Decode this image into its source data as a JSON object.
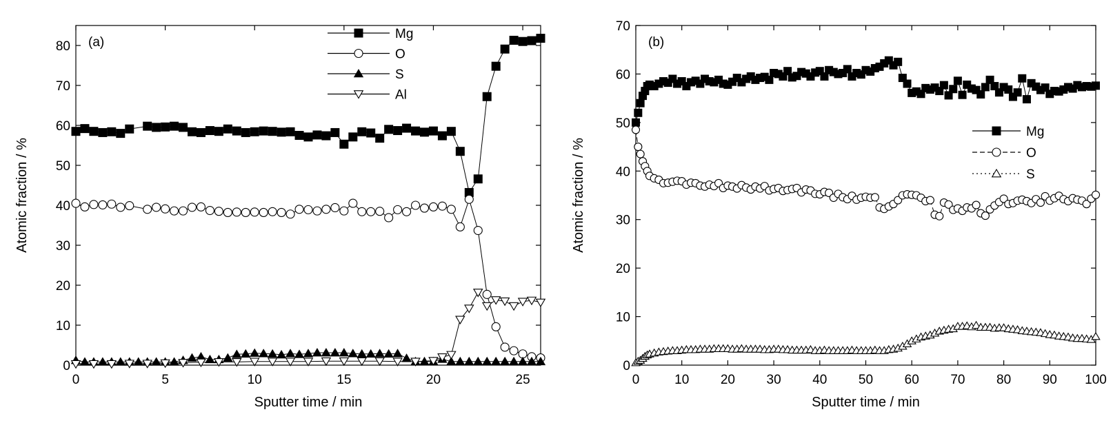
{
  "chart_data": [
    {
      "type": "scatter",
      "panel_label": "(a)",
      "xlabel": "Sputter time / min",
      "ylabel": "Atomic fraction / %",
      "xlim": [
        0,
        26
      ],
      "ylim": [
        0,
        85
      ],
      "xticks": [
        "0",
        "5",
        "10",
        "15",
        "20",
        "25"
      ],
      "yticks": [
        "0",
        "10",
        "20",
        "30",
        "40",
        "50",
        "60",
        "70",
        "80"
      ],
      "legend_position": "top-right",
      "series": [
        {
          "name": "Mg",
          "marker": "filled-square",
          "line": "solid",
          "x": [
            0,
            0.5,
            1,
            1.5,
            2,
            2.5,
            3,
            4,
            4.5,
            5,
            5.5,
            6,
            6.5,
            7,
            7.5,
            8,
            8.5,
            9,
            9.5,
            10,
            10.5,
            11,
            11.5,
            12,
            12.5,
            13,
            13.5,
            14,
            14.5,
            15,
            15.5,
            16,
            16.5,
            17,
            17.5,
            18,
            18.5,
            19,
            19.5,
            20,
            20.5,
            21,
            21.5,
            22,
            22.5,
            23,
            23.5,
            24,
            24.5,
            25,
            25.5,
            26
          ],
          "y": [
            58.5,
            59.2,
            58.5,
            58.2,
            58.4,
            58,
            59.1,
            59.8,
            59.5,
            59.6,
            59.8,
            59.5,
            58.4,
            58.2,
            58.7,
            58.5,
            59.1,
            58.6,
            58.2,
            58.4,
            58.6,
            58.5,
            58.3,
            58.4,
            57.5,
            57.1,
            57.6,
            57.4,
            58.2,
            55.3,
            57.1,
            58.4,
            58.1,
            56.8,
            59,
            58.7,
            59.3,
            58.6,
            58.3,
            58.6,
            57.4,
            58.5,
            53.5,
            43.2,
            46.6,
            67.2,
            74.8,
            79.1,
            81.3,
            81,
            81.2,
            81.8
          ]
        },
        {
          "name": "O",
          "marker": "open-circle",
          "line": "solid",
          "x": [
            0,
            0.5,
            1,
            1.5,
            2,
            2.5,
            3,
            4,
            4.5,
            5,
            5.5,
            6,
            6.5,
            7,
            7.5,
            8,
            8.5,
            9,
            9.5,
            10,
            10.5,
            11,
            11.5,
            12,
            12.5,
            13,
            13.5,
            14,
            14.5,
            15,
            15.5,
            16,
            16.5,
            17,
            17.5,
            18,
            18.5,
            19,
            19.5,
            20,
            20.5,
            21,
            21.5,
            22,
            22.5,
            23,
            23.5,
            24,
            24.5,
            25,
            25.5,
            26
          ],
          "y": [
            40.5,
            39.6,
            40.2,
            40.1,
            40.3,
            39.5,
            39.9,
            39,
            39.5,
            39.1,
            38.6,
            38.6,
            39.5,
            39.6,
            38.7,
            38.5,
            38.2,
            38.3,
            38.2,
            38.3,
            38.2,
            38.4,
            38.2,
            37.8,
            39,
            38.9,
            38.6,
            39,
            39.4,
            38.6,
            40.5,
            38.4,
            38.4,
            38.5,
            36.9,
            38.9,
            38.4,
            40,
            39.3,
            39.6,
            39.8,
            39,
            34.6,
            41.5,
            33.7,
            17.7,
            9.6,
            4.5,
            3.6,
            2.8,
            2.1,
            1.8
          ]
        },
        {
          "name": "S",
          "marker": "filled-triangle-up",
          "line": "solid",
          "x": [
            0,
            0.5,
            1,
            1.5,
            2,
            2.5,
            3,
            3.5,
            4,
            4.5,
            5,
            5.5,
            6,
            6.5,
            7,
            7.5,
            8,
            8.5,
            9,
            9.5,
            10,
            10.5,
            11,
            11.5,
            12,
            12.5,
            13,
            13.5,
            14,
            14.5,
            15,
            15.5,
            16,
            16.5,
            17,
            17.5,
            18,
            18.5,
            19,
            19.5,
            20,
            20.5,
            21,
            21.5,
            22,
            22.5,
            23,
            23.5,
            24,
            24.5,
            25,
            25.5,
            26
          ],
          "y": [
            1.2,
            0.8,
            0.8,
            0.8,
            0.8,
            0.8,
            0.8,
            0.8,
            0.8,
            0.8,
            0.8,
            0.8,
            1.2,
            1.8,
            2.1,
            1.4,
            1.4,
            1.8,
            2.7,
            2.8,
            3,
            2.9,
            2.8,
            2.6,
            2.9,
            2.7,
            2.9,
            3.1,
            3.1,
            3.1,
            3.1,
            2.9,
            2.8,
            2.8,
            2.9,
            2.8,
            2.9,
            1.7,
            0.9,
            0.9,
            0.9,
            1.5,
            0.9,
            0.9,
            0.9,
            0.9,
            0.9,
            0.9,
            0.9,
            0.9,
            0.9,
            0.9,
            0.9
          ]
        },
        {
          "name": "Al",
          "marker": "open-triangle-down",
          "line": "solid",
          "x": [
            0,
            1,
            2,
            3,
            4,
            5,
            6,
            7,
            8,
            9,
            10,
            11,
            12,
            13,
            14,
            15,
            16,
            17,
            18,
            19,
            20,
            20.5,
            21,
            21.5,
            22,
            22.5,
            23,
            23.5,
            24,
            24.5,
            25,
            25.5,
            26
          ],
          "y": [
            0.3,
            0.3,
            0.3,
            0.4,
            0.4,
            0.5,
            0.6,
            0.7,
            0.8,
            0.8,
            0.9,
            0.9,
            0.9,
            0.9,
            1,
            1,
            1,
            1,
            0.9,
            0.9,
            1.1,
            2,
            2.6,
            11.4,
            14.2,
            18.2,
            14.8,
            16.3,
            16,
            14.8,
            15.9,
            16.2,
            15.7
          ]
        }
      ]
    },
    {
      "type": "scatter",
      "panel_label": "(b)",
      "xlabel": "Sputter time / min",
      "ylabel": "Atomic fraction / %",
      "xlim": [
        0,
        100
      ],
      "ylim": [
        0,
        70
      ],
      "xticks": [
        "0",
        "10",
        "20",
        "30",
        "40",
        "50",
        "60",
        "70",
        "80",
        "90",
        "100"
      ],
      "yticks": [
        "0",
        "10",
        "20",
        "30",
        "40",
        "50",
        "60",
        "70"
      ],
      "legend_position": "right",
      "series": [
        {
          "name": "Mg",
          "marker": "filled-square",
          "line": "solid",
          "x": [
            0,
            0.5,
            1,
            1.5,
            2,
            2.5,
            3,
            4,
            5,
            6,
            7,
            8,
            9,
            10,
            11,
            12,
            13,
            14,
            15,
            16,
            17,
            18,
            19,
            20,
            21,
            22,
            23,
            24,
            25,
            26,
            27,
            28,
            29,
            30,
            31,
            32,
            33,
            34,
            35,
            36,
            37,
            38,
            39,
            40,
            41,
            42,
            43,
            44,
            45,
            46,
            47,
            48,
            49,
            50,
            51,
            52,
            53,
            54,
            55,
            56,
            57,
            58,
            59,
            60,
            61,
            62,
            63,
            64,
            65,
            66,
            67,
            68,
            69,
            70,
            71,
            72,
            73,
            74,
            75,
            76,
            77,
            78,
            79,
            80,
            81,
            82,
            83,
            84,
            85,
            86,
            87,
            88,
            89,
            90,
            91,
            92,
            93,
            94,
            95,
            96,
            97,
            98,
            99,
            100
          ],
          "y": [
            50,
            52,
            54,
            55.5,
            56.5,
            57.5,
            57.8,
            57.5,
            58,
            58.5,
            58.2,
            59,
            58,
            58.5,
            57.5,
            58.3,
            58.6,
            58,
            59,
            58.5,
            58.3,
            58.8,
            58,
            57.8,
            58.4,
            59.2,
            58.3,
            59,
            59.5,
            58.8,
            59.2,
            59.4,
            58.8,
            60.2,
            60,
            59.5,
            60.6,
            59.3,
            59.6,
            60.4,
            60.1,
            59.5,
            60.3,
            60.6,
            59.5,
            60.8,
            60.4,
            60,
            60.2,
            61,
            59.5,
            60.2,
            59.9,
            60.8,
            60.5,
            61.2,
            61.5,
            62.2,
            62.8,
            61.8,
            62.5,
            59.2,
            58,
            56.1,
            56.4,
            55.9,
            57.1,
            56.8,
            57.2,
            56.5,
            57.7,
            55.6,
            56.9,
            58.6,
            55.7,
            57.8,
            57,
            56.7,
            55.8,
            57.3,
            58.8,
            57.5,
            56.2,
            57.3,
            56.8,
            55.3,
            56.2,
            59.1,
            54.8,
            58.1,
            57.4,
            56.7,
            57.2,
            55.9,
            56.5,
            56.4,
            56.8,
            57.3,
            57,
            57.7,
            57.3,
            57.5,
            57.4,
            57.6
          ]
        },
        {
          "name": "O",
          "marker": "open-circle",
          "line": "dashed",
          "x": [
            0,
            0.5,
            1,
            1.5,
            2,
            2.5,
            3,
            4,
            5,
            6,
            7,
            8,
            9,
            10,
            11,
            12,
            13,
            14,
            15,
            16,
            17,
            18,
            19,
            20,
            21,
            22,
            23,
            24,
            25,
            26,
            27,
            28,
            29,
            30,
            31,
            32,
            33,
            34,
            35,
            36,
            37,
            38,
            39,
            40,
            41,
            42,
            43,
            44,
            45,
            46,
            47,
            48,
            49,
            50,
            51,
            52,
            53,
            54,
            55,
            56,
            57,
            58,
            59,
            60,
            61,
            62,
            63,
            64,
            65,
            66,
            67,
            68,
            69,
            70,
            71,
            72,
            73,
            74,
            75,
            76,
            77,
            78,
            79,
            80,
            81,
            82,
            83,
            84,
            85,
            86,
            87,
            88,
            89,
            90,
            91,
            92,
            93,
            94,
            95,
            96,
            97,
            98,
            99,
            100
          ],
          "y": [
            48.5,
            45,
            43.5,
            42,
            41,
            40,
            39,
            38.5,
            38.2,
            37.5,
            37.6,
            37.8,
            38,
            37.9,
            37.2,
            37.6,
            37.5,
            37,
            36.8,
            37.2,
            36.9,
            37.5,
            36.5,
            37,
            36.8,
            36.4,
            37.1,
            36.6,
            36.2,
            36.8,
            36.4,
            36.9,
            36,
            36.3,
            36.5,
            35.9,
            36.1,
            36.3,
            36.5,
            35.6,
            36.2,
            36,
            35.3,
            35.2,
            35.7,
            35.5,
            34.5,
            35.3,
            34.6,
            34.2,
            34.9,
            34.1,
            34.5,
            34.7,
            34.5,
            34.6,
            32.5,
            32.2,
            32.7,
            33.2,
            34,
            35,
            35.2,
            35.1,
            35,
            34.5,
            33.8,
            34,
            31,
            30.7,
            33.5,
            33.1,
            32,
            32.3,
            31.8,
            32.5,
            32.3,
            33,
            31.3,
            30.8,
            32.1,
            32.9,
            33.6,
            34.3,
            33.2,
            33.4,
            33.9,
            34.1,
            33.8,
            33.4,
            34.2,
            33.5,
            34.8,
            33.9,
            34.4,
            34.9,
            34.2,
            33.8,
            34.4,
            34.1,
            33.9,
            33.2,
            34.3,
            35.1
          ]
        },
        {
          "name": "S",
          "marker": "open-triangle-up",
          "line": "dotted",
          "x": [
            0,
            0.5,
            1,
            1.5,
            2,
            2.5,
            3,
            4,
            5,
            6,
            7,
            8,
            9,
            10,
            11,
            12,
            13,
            14,
            15,
            16,
            17,
            18,
            19,
            20,
            21,
            22,
            23,
            24,
            25,
            26,
            27,
            28,
            29,
            30,
            31,
            32,
            33,
            34,
            35,
            36,
            37,
            38,
            39,
            40,
            41,
            42,
            43,
            44,
            45,
            46,
            47,
            48,
            49,
            50,
            51,
            52,
            53,
            54,
            55,
            56,
            57,
            58,
            59,
            60,
            61,
            62,
            63,
            64,
            65,
            66,
            67,
            68,
            69,
            70,
            71,
            72,
            73,
            74,
            75,
            76,
            77,
            78,
            79,
            80,
            81,
            82,
            83,
            84,
            85,
            86,
            87,
            88,
            89,
            90,
            91,
            92,
            93,
            94,
            95,
            96,
            97,
            98,
            99,
            100
          ],
          "y": [
            0.5,
            0.8,
            1,
            1.4,
            1.8,
            2.1,
            2.3,
            2.5,
            2.7,
            2.8,
            2.9,
            3,
            3,
            3.1,
            3.2,
            3.2,
            3.2,
            3.3,
            3.3,
            3.3,
            3.4,
            3.4,
            3.4,
            3.4,
            3.3,
            3.3,
            3.4,
            3.3,
            3.3,
            3.3,
            3.3,
            3.2,
            3.2,
            3.3,
            3.3,
            3.2,
            3.2,
            3.1,
            3.1,
            3.1,
            3.1,
            3.2,
            3,
            3,
            3.1,
            3,
            3,
            3,
            3,
            3,
            3.1,
            3,
            3,
            3,
            3,
            3.1,
            3,
            3,
            3.2,
            3.3,
            3.5,
            3.9,
            4.4,
            5,
            5.4,
            5.8,
            6,
            6.2,
            6.6,
            7,
            7.2,
            7.4,
            7.5,
            8,
            8,
            8.1,
            7.9,
            8.2,
            7.8,
            7.8,
            7.8,
            7.6,
            7.7,
            7.7,
            7.5,
            7.4,
            7.3,
            7.1,
            7,
            6.9,
            6.8,
            6.7,
            6.5,
            6.3,
            6.2,
            6,
            5.9,
            5.8,
            5.6,
            5.5,
            5.5,
            5.4,
            5.3,
            5.9
          ]
        }
      ]
    }
  ]
}
